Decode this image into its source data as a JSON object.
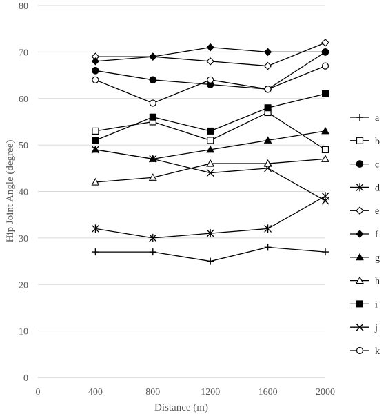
{
  "chart_data": {
    "type": "line",
    "xlabel": "Distance (m)",
    "ylabel": "Hip Joint Angle (degree)",
    "x": [
      400,
      800,
      1200,
      1600,
      2000
    ],
    "xlim": [
      0,
      2000
    ],
    "ylim": [
      0,
      80
    ],
    "xticks": [
      "0",
      "400",
      "800",
      "1200",
      "1600",
      "2000"
    ],
    "yticks": [
      "0",
      "10",
      "20",
      "30",
      "40",
      "50",
      "60",
      "70",
      "80"
    ],
    "grid": "horizontal",
    "legend_position": "right",
    "line_color": "#000000",
    "series": [
      {
        "name": "a",
        "marker": "plus",
        "values": [
          27,
          27,
          25,
          28,
          27
        ]
      },
      {
        "name": "b",
        "marker": "square-open",
        "values": [
          53,
          55,
          51,
          57,
          49
        ]
      },
      {
        "name": "c",
        "marker": "circle-filled",
        "values": [
          66,
          64,
          63,
          62,
          70
        ]
      },
      {
        "name": "d",
        "marker": "asterisk",
        "values": [
          32,
          30,
          31,
          32,
          39
        ]
      },
      {
        "name": "e",
        "marker": "diamond-open",
        "values": [
          69,
          69,
          68,
          67,
          72
        ]
      },
      {
        "name": "f",
        "marker": "diamond-filled",
        "values": [
          68,
          69,
          71,
          70,
          70
        ]
      },
      {
        "name": "g",
        "marker": "triangle-filled",
        "values": [
          49,
          47,
          49,
          51,
          53
        ]
      },
      {
        "name": "h",
        "marker": "triangle-open",
        "values": [
          42,
          43,
          46,
          46,
          47
        ]
      },
      {
        "name": "i",
        "marker": "square-filled",
        "values": [
          51,
          56,
          53,
          58,
          61
        ]
      },
      {
        "name": "j",
        "marker": "cross",
        "values": [
          49,
          47,
          44,
          45,
          38
        ]
      },
      {
        "name": "k",
        "marker": "circle-open",
        "values": [
          64,
          59,
          64,
          62,
          67
        ]
      }
    ]
  }
}
